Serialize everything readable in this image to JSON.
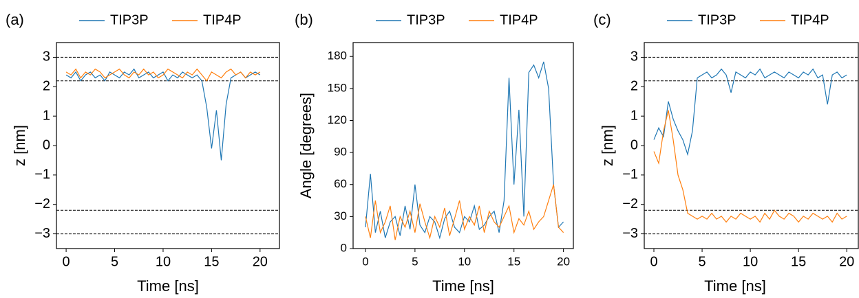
{
  "chart_data": [
    {
      "type": "line",
      "panel_label": "(a)",
      "xlabel": "Time [ns]",
      "ylabel": "z [nm]",
      "x": [
        0,
        0.5,
        1,
        1.5,
        2,
        2.5,
        3,
        3.5,
        4,
        4.5,
        5,
        5.5,
        6,
        6.5,
        7,
        7.5,
        8,
        8.5,
        9,
        9.5,
        10,
        10.5,
        11,
        11.5,
        12,
        12.5,
        13,
        13.5,
        14,
        14.5,
        15,
        15.5,
        16,
        16.5,
        17,
        17.5,
        18,
        18.5,
        19,
        19.5,
        20
      ],
      "series": [
        {
          "name": "TIP3P",
          "color": "#1f77b4",
          "values": [
            2.4,
            2.3,
            2.5,
            2.2,
            2.4,
            2.5,
            2.3,
            2.4,
            2.2,
            2.5,
            2.4,
            2.3,
            2.5,
            2.4,
            2.6,
            2.3,
            2.4,
            2.5,
            2.3,
            2.4,
            2.5,
            2.2,
            2.4,
            2.3,
            2.5,
            2.4,
            2.3,
            2.4,
            2.2,
            1.3,
            -0.1,
            1.2,
            -0.5,
            1.4,
            2.3,
            2.4,
            2.5,
            2.3,
            2.4,
            2.5,
            2.4
          ]
        },
        {
          "name": "TIP4P",
          "color": "#ff7f0e",
          "values": [
            2.5,
            2.4,
            2.6,
            2.3,
            2.5,
            2.4,
            2.6,
            2.5,
            2.3,
            2.4,
            2.5,
            2.6,
            2.4,
            2.3,
            2.5,
            2.4,
            2.6,
            2.4,
            2.5,
            2.3,
            2.4,
            2.6,
            2.5,
            2.4,
            2.3,
            2.5,
            2.4,
            2.6,
            2.4,
            2.2,
            2.5,
            2.4,
            2.3,
            2.5,
            2.6,
            2.4,
            2.5,
            2.3,
            2.5,
            2.4,
            2.5
          ]
        }
      ],
      "xlim": [
        -1,
        22
      ],
      "ylim": [
        -3.5,
        3.5
      ],
      "xticks": [
        0,
        5,
        10,
        15,
        20
      ],
      "yticks": [
        {
          "value": -3,
          "label": "−3"
        },
        {
          "value": -2,
          "label": "−2"
        },
        {
          "value": -1,
          "label": "−1"
        },
        0,
        1,
        2,
        3
      ],
      "hlines": [
        -3,
        -2.2,
        2.2,
        3
      ]
    },
    {
      "type": "line",
      "panel_label": "(b)",
      "xlabel": "Time [ns]",
      "ylabel": "Angle [degrees]",
      "x": [
        0,
        0.5,
        1,
        1.5,
        2,
        2.5,
        3,
        3.5,
        4,
        4.5,
        5,
        5.5,
        6,
        6.5,
        7,
        7.5,
        8,
        8.5,
        9,
        9.5,
        10,
        10.5,
        11,
        11.5,
        12,
        12.5,
        13,
        13.5,
        14,
        14.5,
        15,
        15.5,
        16,
        16.5,
        17,
        17.5,
        18,
        18.5,
        19,
        19.5,
        20
      ],
      "series": [
        {
          "name": "TIP3P",
          "color": "#1f77b4",
          "values": [
            20,
            70,
            15,
            35,
            10,
            25,
            30,
            12,
            40,
            18,
            60,
            22,
            15,
            30,
            25,
            10,
            28,
            35,
            20,
            15,
            30,
            25,
            40,
            18,
            22,
            30,
            35,
            15,
            45,
            160,
            60,
            130,
            30,
            165,
            172,
            160,
            175,
            150,
            60,
            20,
            25
          ]
        },
        {
          "name": "TIP4P",
          "color": "#ff7f0e",
          "values": [
            30,
            10,
            45,
            15,
            25,
            40,
            8,
            30,
            20,
            35,
            15,
            42,
            25,
            10,
            30,
            20,
            38,
            12,
            28,
            45,
            18,
            30,
            22,
            40,
            15,
            35,
            25,
            20,
            30,
            40,
            15,
            28,
            22,
            35,
            18,
            25,
            30,
            45,
            60,
            20,
            15
          ]
        }
      ],
      "xlim": [
        -1.25,
        21
      ],
      "ylim": [
        0,
        193
      ],
      "xticks": [
        0,
        5,
        10,
        15,
        20
      ],
      "yticks": [
        0,
        30,
        60,
        90,
        120,
        150,
        180
      ]
    },
    {
      "type": "line",
      "panel_label": "(c)",
      "xlabel": "Time [ns]",
      "ylabel": "z [nm]",
      "x": [
        0,
        0.5,
        1,
        1.5,
        2,
        2.5,
        3,
        3.5,
        4,
        4.5,
        5,
        5.5,
        6,
        6.5,
        7,
        7.5,
        8,
        8.5,
        9,
        9.5,
        10,
        10.5,
        11,
        11.5,
        12,
        12.5,
        13,
        13.5,
        14,
        14.5,
        15,
        15.5,
        16,
        16.5,
        17,
        17.5,
        18,
        18.5,
        19,
        19.5,
        20
      ],
      "series": [
        {
          "name": "TIP3P",
          "color": "#1f77b4",
          "values": [
            0.2,
            0.6,
            0.3,
            1.5,
            0.9,
            0.5,
            0.2,
            -0.3,
            0.5,
            2.3,
            2.4,
            2.5,
            2.3,
            2.4,
            2.6,
            2.4,
            1.8,
            2.5,
            2.4,
            2.3,
            2.5,
            2.4,
            2.6,
            2.3,
            2.4,
            2.5,
            2.4,
            2.3,
            2.5,
            2.4,
            2.3,
            2.5,
            2.4,
            2.6,
            2.3,
            2.4,
            1.4,
            2.4,
            2.5,
            2.3,
            2.4
          ]
        },
        {
          "name": "TIP4P",
          "color": "#ff7f0e",
          "values": [
            -0.2,
            -0.6,
            0.5,
            1.2,
            0.2,
            -1.0,
            -1.5,
            -2.3,
            -2.4,
            -2.5,
            -2.4,
            -2.5,
            -2.3,
            -2.5,
            -2.4,
            -2.6,
            -2.4,
            -2.5,
            -2.3,
            -2.4,
            -2.5,
            -2.4,
            -2.6,
            -2.3,
            -2.5,
            -2.2,
            -2.4,
            -2.5,
            -2.3,
            -2.4,
            -2.6,
            -2.4,
            -2.5,
            -2.3,
            -2.4,
            -2.5,
            -2.4,
            -2.6,
            -2.3,
            -2.5,
            -2.4
          ]
        }
      ],
      "xlim": [
        -1,
        21.2
      ],
      "ylim": [
        -3.5,
        3.5
      ],
      "xticks": [
        0,
        5,
        10,
        15,
        20
      ],
      "yticks": [
        {
          "value": -3,
          "label": "−3"
        },
        {
          "value": -2,
          "label": "−2"
        },
        {
          "value": -1,
          "label": "−1"
        },
        0,
        1,
        2,
        3
      ],
      "hlines": [
        -3,
        -2.2,
        2.2,
        3
      ]
    }
  ]
}
